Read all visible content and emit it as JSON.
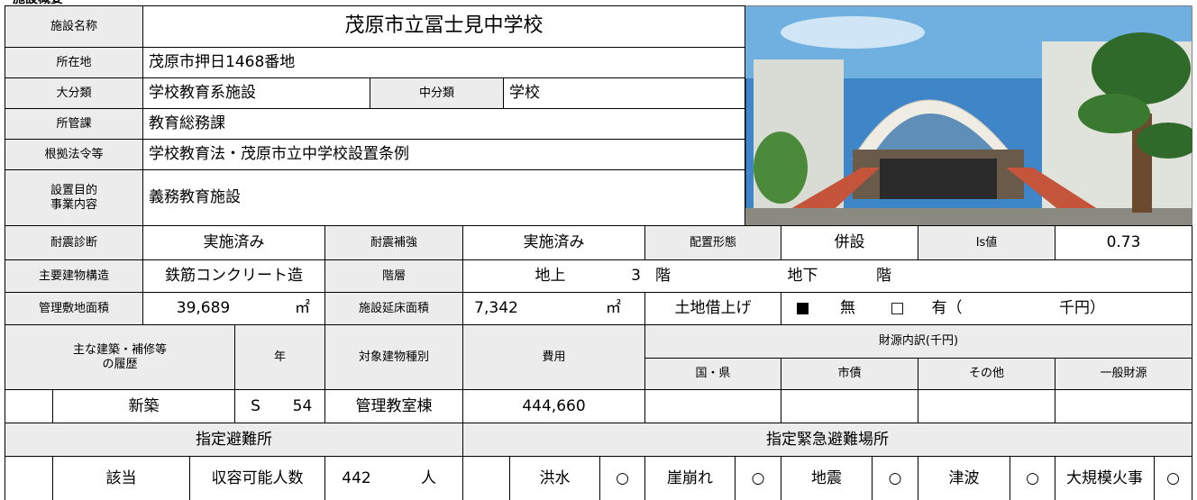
{
  "section_title": "施設概要",
  "facility": {
    "name_label": "施設名称",
    "name": "茂原市立冨士見中学校",
    "address_label": "所在地",
    "address": "茂原市押日1468番地",
    "major_class_label": "大分類",
    "major_class": "学校教育系施設",
    "mid_class_label": "中分類",
    "mid_class": "学校",
    "department_label": "所管課",
    "department": "教育総務課",
    "legal_basis_label": "根拠法令等",
    "legal_basis": "学校教育法・茂原市立中学校設置条例",
    "purpose_label": "設置目的\n事業内容",
    "purpose": "義務教育施設"
  },
  "building": {
    "seismic_diagnosis_label": "耐震診断",
    "seismic_diagnosis": "実施済み",
    "seismic_reinforcement_label": "耐震補強",
    "seismic_reinforcement": "実施済み",
    "layout_label": "配置形態",
    "layout": "併設",
    "is_label": "Is値",
    "is_value": "0.73",
    "structure_label": "主要建物構造",
    "structure": "鉄筋コンクリート造",
    "floors_label": "階層",
    "above_label": "地上",
    "above_floors": "3",
    "above_unit": "階",
    "below_label": "地下",
    "below_unit": "階",
    "site_area_label": "管理敷地面積",
    "site_area": "39,689",
    "site_area_unit": "㎡",
    "floor_area_label": "施設延床面積",
    "floor_area": "7,342",
    "floor_area_unit": "㎡",
    "land_lease_label": "土地借上げ",
    "land_lease": {
      "no_mark": "■",
      "no": "無",
      "yes_mark": "□",
      "yes": "有（",
      "unit": "千円）"
    }
  },
  "history": {
    "label": "主な建築・補修等\nの履歴",
    "year_label": "年",
    "building_type_label": "対象建物種別",
    "cost_label": "費用",
    "funding_label": "財源内訳(千円)",
    "funding_columns": [
      "国・県",
      "市債",
      "その他",
      "一般財源"
    ],
    "rows": [
      {
        "type": "新築",
        "era": "S",
        "year": "54",
        "building": "管理教室棟",
        "cost": "444,660"
      }
    ]
  },
  "evacuation": {
    "shelter_label": "指定避難所",
    "applicable": "該当",
    "capacity_label": "収容可能人数",
    "capacity": "442",
    "capacity_unit": "人",
    "emergency_label": "指定緊急避難場所",
    "hazards": [
      {
        "name": "洪水",
        "mark": "○"
      },
      {
        "name": "崖崩れ",
        "mark": "○"
      },
      {
        "name": "地震",
        "mark": "○"
      },
      {
        "name": "津波",
        "mark": "○"
      },
      {
        "name": "大規模火事",
        "mark": "○"
      }
    ]
  }
}
